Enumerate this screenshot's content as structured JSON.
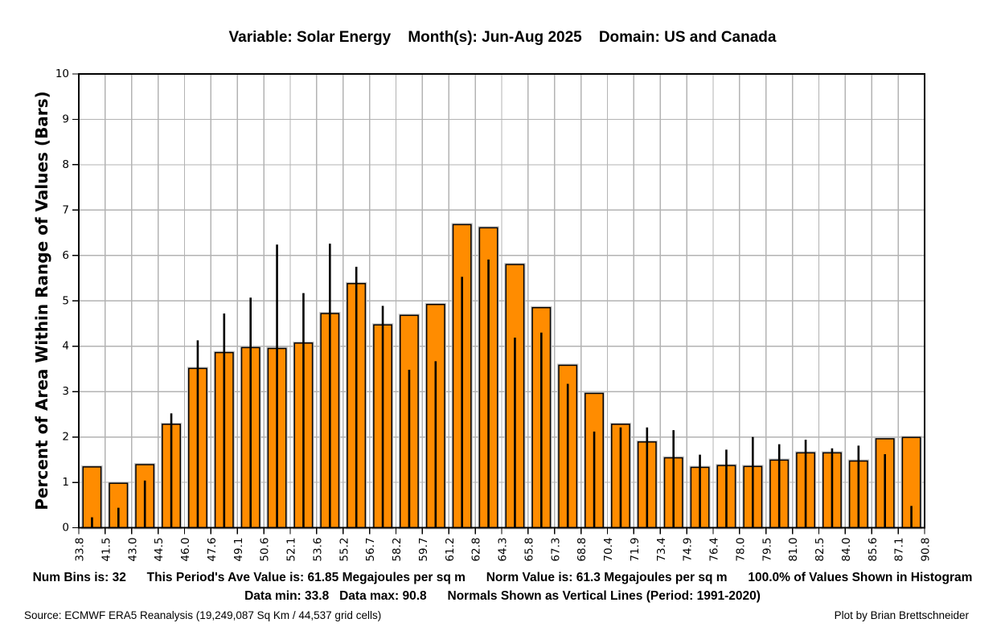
{
  "header": {
    "title": "Variable: Solar Energy    Month(s): Jun-Aug 2025    Domain: US and Canada"
  },
  "chart_data": {
    "type": "bar",
    "title": "Variable: Solar Energy    Month(s): Jun-Aug 2025    Domain: US and Canada",
    "xlabel": "",
    "ylabel": "Percent of Area Within Range of Values (Bars)",
    "ylim": [
      0,
      10
    ],
    "yticks": [
      0,
      1,
      2,
      3,
      4,
      5,
      6,
      7,
      8,
      9,
      10
    ],
    "grid": true,
    "legend_position": "none",
    "bin_edges": [
      "33.8",
      "41.5",
      "43.0",
      "44.5",
      "46.0",
      "47.6",
      "49.1",
      "50.6",
      "52.1",
      "53.6",
      "55.2",
      "56.7",
      "58.2",
      "59.7",
      "61.2",
      "62.8",
      "64.3",
      "65.8",
      "67.3",
      "68.8",
      "70.4",
      "71.9",
      "73.4",
      "74.9",
      "76.4",
      "78.0",
      "79.5",
      "81.0",
      "82.5",
      "84.0",
      "85.6",
      "87.1",
      "90.8"
    ],
    "series": [
      {
        "name": "Percent of area this period (bars)",
        "style": "bar",
        "values": [
          1.34,
          0.98,
          1.39,
          2.28,
          3.51,
          3.86,
          3.97,
          3.95,
          4.07,
          4.72,
          5.38,
          4.47,
          4.68,
          4.92,
          6.68,
          6.61,
          5.8,
          4.85,
          3.58,
          2.96,
          2.28,
          1.89,
          1.54,
          1.33,
          1.37,
          1.35,
          1.49,
          1.65,
          1.65,
          1.47,
          1.96,
          1.99
        ]
      },
      {
        "name": "Normals 1991-2020 (vertical lines)",
        "style": "vertical-line",
        "values": [
          0.23,
          0.44,
          1.04,
          2.52,
          4.13,
          4.72,
          5.07,
          6.24,
          5.17,
          6.26,
          5.75,
          4.89,
          3.48,
          3.67,
          5.53,
          5.91,
          4.19,
          4.3,
          3.17,
          2.12,
          2.21,
          2.21,
          2.15,
          1.61,
          1.72,
          2.0,
          1.84,
          1.94,
          1.75,
          1.81,
          1.62,
          0.48
        ]
      }
    ]
  },
  "colors": {
    "bar_fill": "#FF8C00",
    "bar_edge": "#000000",
    "bar_halo": "#c8c8c8",
    "grid": "#b3b3b3",
    "normal_line": "#000000",
    "spine": "#000000",
    "background": "#ffffff"
  },
  "footer": {
    "line1": "Num Bins is: 32      This Period's Ave Value is: 61.85 Megajoules per sq m      Norm Value is: 61.3 Megajoules per sq m      100.0% of Values Shown in Histogram",
    "line2": "Data min: 33.8   Data max: 90.8      Normals Shown as Vertical Lines (Period: 1991-2020)",
    "source": "Source: ECMWF ERA5 Reanalysis (19,249,087 Sq Km / 44,537 grid cells)",
    "credit": "Plot by Brian Brettschneider"
  }
}
